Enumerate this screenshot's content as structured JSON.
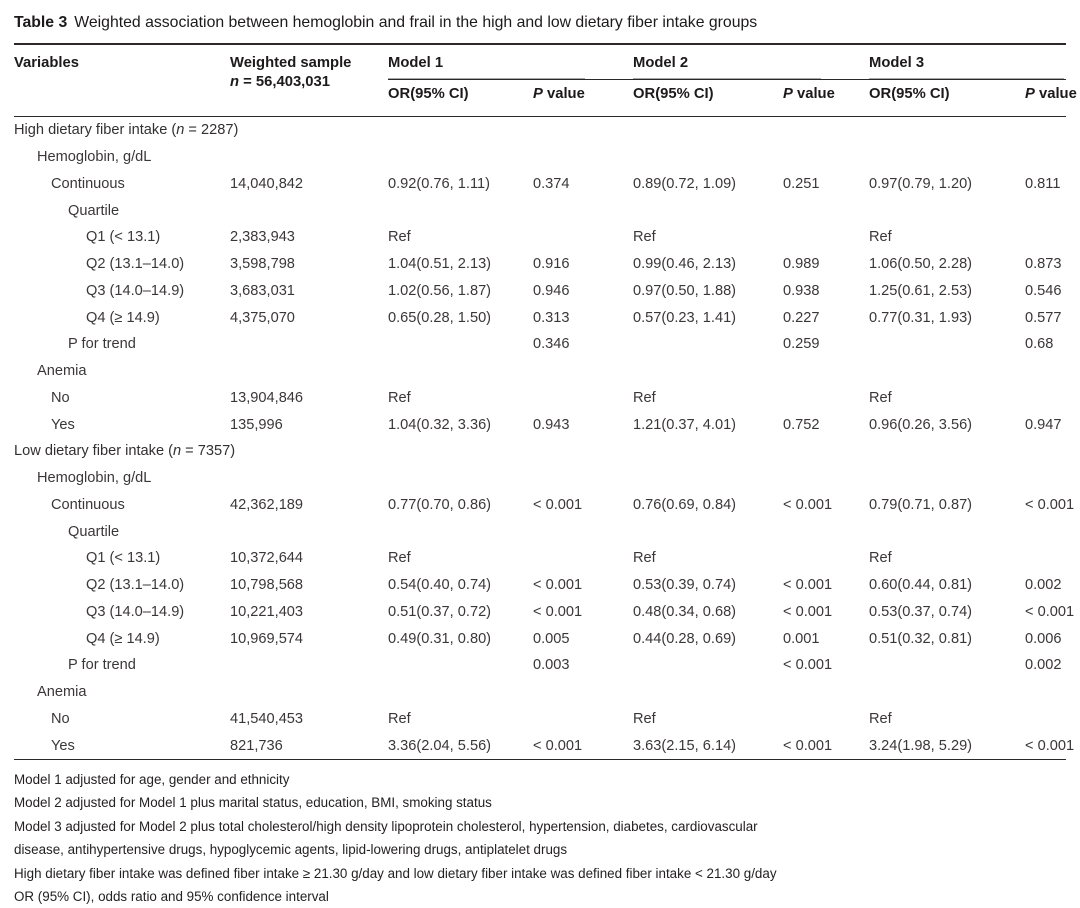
{
  "title": {
    "label": "Table 3",
    "caption": "Weighted association between hemoglobin and frail in the high and low dietary fiber intake groups"
  },
  "header": {
    "variables": "Variables",
    "weighted_sample": "Weighted sample",
    "n_italic": "n",
    "n_value": " = 56,403,031",
    "models": [
      "Model 1",
      "Model 2",
      "Model 3"
    ],
    "or_label": "OR(95% CI)",
    "p_italic": "P",
    "p_rest": " value"
  },
  "colors": {
    "rule_dark": "#2c2829",
    "rule_light": "#a8a8a8",
    "text": "#3b3738"
  },
  "table": {
    "rows": [
      {
        "indent": 0,
        "label_parts": [
          {
            "t": "High dietary fiber intake ("
          },
          {
            "t": "n",
            "italic": true
          },
          {
            "t": " = 2287)"
          }
        ],
        "values": [
          "",
          "",
          "",
          "",
          "",
          "",
          ""
        ]
      },
      {
        "indent": 1,
        "label_parts": [
          {
            "t": "Hemoglobin, g/dL"
          }
        ],
        "values": [
          "",
          "",
          "",
          "",
          "",
          "",
          ""
        ]
      },
      {
        "indent": 2,
        "label_parts": [
          {
            "t": "Continuous"
          }
        ],
        "values": [
          "14,040,842",
          "0.92(0.76, 1.11)",
          "0.374",
          "0.89(0.72, 1.09)",
          "0.251",
          "0.97(0.79, 1.20)",
          "0.811"
        ]
      },
      {
        "indent": 3,
        "label_parts": [
          {
            "t": "Quartile"
          }
        ],
        "values": [
          "",
          "",
          "",
          "",
          "",
          "",
          ""
        ]
      },
      {
        "indent": 4,
        "label_parts": [
          {
            "t": "Q1 (< 13.1)"
          }
        ],
        "values": [
          "2,383,943",
          "Ref",
          "",
          "Ref",
          "",
          "Ref",
          ""
        ]
      },
      {
        "indent": 4,
        "label_parts": [
          {
            "t": "Q2 (13.1–14.0)"
          }
        ],
        "values": [
          "3,598,798",
          "1.04(0.51, 2.13)",
          "0.916",
          "0.99(0.46, 2.13)",
          "0.989",
          "1.06(0.50, 2.28)",
          "0.873"
        ]
      },
      {
        "indent": 4,
        "label_parts": [
          {
            "t": "Q3 (14.0–14.9)"
          }
        ],
        "values": [
          "3,683,031",
          "1.02(0.56, 1.87)",
          "0.946",
          "0.97(0.50, 1.88)",
          "0.938",
          "1.25(0.61, 2.53)",
          "0.546"
        ]
      },
      {
        "indent": 4,
        "label_parts": [
          {
            "t": "Q4 (≥ 14.9)"
          }
        ],
        "values": [
          "4,375,070",
          "0.65(0.28, 1.50)",
          "0.313",
          "0.57(0.23, 1.41)",
          "0.227",
          "0.77(0.31, 1.93)",
          "0.577"
        ]
      },
      {
        "indent": 3,
        "label_parts": [
          {
            "t": "P for trend"
          }
        ],
        "values": [
          "",
          "",
          "0.346",
          "",
          "0.259",
          "",
          "0.68"
        ]
      },
      {
        "indent": 1,
        "label_parts": [
          {
            "t": "Anemia"
          }
        ],
        "values": [
          "",
          "",
          "",
          "",
          "",
          "",
          ""
        ]
      },
      {
        "indent": 2,
        "label_parts": [
          {
            "t": "No"
          }
        ],
        "values": [
          "13,904,846",
          "Ref",
          "",
          "Ref",
          "",
          "Ref",
          ""
        ]
      },
      {
        "indent": 2,
        "label_parts": [
          {
            "t": "Yes"
          }
        ],
        "values": [
          "135,996",
          "1.04(0.32, 3.36)",
          "0.943",
          "1.21(0.37, 4.01)",
          "0.752",
          "0.96(0.26, 3.56)",
          "0.947"
        ]
      },
      {
        "indent": 0,
        "label_parts": [
          {
            "t": "Low dietary fiber intake ("
          },
          {
            "t": "n",
            "italic": true
          },
          {
            "t": " = 7357)"
          }
        ],
        "values": [
          "",
          "",
          "",
          "",
          "",
          "",
          ""
        ]
      },
      {
        "indent": 1,
        "label_parts": [
          {
            "t": "Hemoglobin, g/dL"
          }
        ],
        "values": [
          "",
          "",
          "",
          "",
          "",
          "",
          ""
        ]
      },
      {
        "indent": 2,
        "label_parts": [
          {
            "t": "Continuous"
          }
        ],
        "values": [
          "42,362,189",
          "0.77(0.70, 0.86)",
          "< 0.001",
          "0.76(0.69, 0.84)",
          "< 0.001",
          "0.79(0.71, 0.87)",
          "< 0.001"
        ]
      },
      {
        "indent": 3,
        "label_parts": [
          {
            "t": "Quartile"
          }
        ],
        "values": [
          "",
          "",
          "",
          "",
          "",
          "",
          ""
        ]
      },
      {
        "indent": 4,
        "label_parts": [
          {
            "t": "Q1 (< 13.1)"
          }
        ],
        "values": [
          "10,372,644",
          "Ref",
          "",
          "Ref",
          "",
          "Ref",
          ""
        ]
      },
      {
        "indent": 4,
        "label_parts": [
          {
            "t": "Q2 (13.1–14.0)"
          }
        ],
        "values": [
          "10,798,568",
          "0.54(0.40, 0.74)",
          "< 0.001",
          "0.53(0.39, 0.74)",
          "< 0.001",
          "0.60(0.44, 0.81)",
          "0.002"
        ]
      },
      {
        "indent": 4,
        "label_parts": [
          {
            "t": "Q3 (14.0–14.9)"
          }
        ],
        "values": [
          "10,221,403",
          "0.51(0.37, 0.72)",
          "< 0.001",
          "0.48(0.34, 0.68)",
          "< 0.001",
          "0.53(0.37, 0.74)",
          "< 0.001"
        ]
      },
      {
        "indent": 4,
        "label_parts": [
          {
            "t": "Q4 (≥ 14.9)"
          }
        ],
        "values": [
          "10,969,574",
          "0.49(0.31, 0.80)",
          "0.005",
          "0.44(0.28, 0.69)",
          "0.001",
          "0.51(0.32, 0.81)",
          "0.006"
        ]
      },
      {
        "indent": 3,
        "label_parts": [
          {
            "t": "P for trend"
          }
        ],
        "values": [
          "",
          "",
          "0.003",
          "",
          "< 0.001",
          "",
          "0.002"
        ]
      },
      {
        "indent": 1,
        "label_parts": [
          {
            "t": "Anemia"
          }
        ],
        "values": [
          "",
          "",
          "",
          "",
          "",
          "",
          ""
        ]
      },
      {
        "indent": 2,
        "label_parts": [
          {
            "t": "No"
          }
        ],
        "values": [
          "41,540,453",
          "Ref",
          "",
          "Ref",
          "",
          "Ref",
          ""
        ]
      },
      {
        "indent": 2,
        "label_parts": [
          {
            "t": "Yes"
          }
        ],
        "values": [
          "821,736",
          "3.36(2.04, 5.56)",
          "< 0.001",
          "3.63(2.15, 6.14)",
          "< 0.001",
          "3.24(1.98, 5.29)",
          "< 0.001"
        ]
      }
    ]
  },
  "footnotes": [
    "Model 1 adjusted for age, gender and ethnicity",
    "Model 2 adjusted for Model 1 plus marital status, education, BMI, smoking status",
    "Model 3 adjusted for Model 2 plus total cholesterol/high density lipoprotein cholesterol, hypertension, diabetes, cardiovascular",
    "disease, antihypertensive drugs, hypoglycemic agents, lipid-lowering drugs, antiplatelet drugs",
    "High dietary fiber intake was defined fiber intake ≥ 21.30 g/day and low dietary fiber intake was defined fiber intake < 21.30 g/day",
    "OR (95% CI), odds ratio and 95% confidence interval"
  ]
}
